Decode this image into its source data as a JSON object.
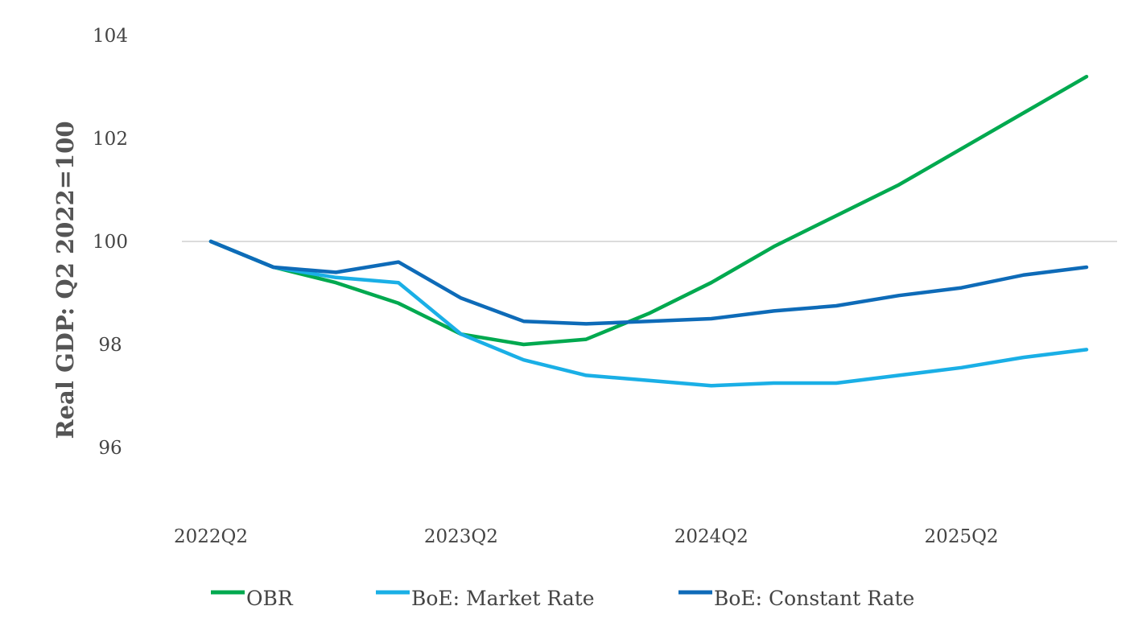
{
  "chart_data": {
    "type": "line",
    "title": "",
    "xlabel": "",
    "ylabel": "Real GDP: Q2 2022=100",
    "ylim": [
      95,
      104
    ],
    "yticks": [
      96,
      98,
      100,
      102,
      104
    ],
    "reference_line": 100,
    "categories": [
      "2022Q2",
      "2022Q3",
      "2022Q4",
      "2023Q1",
      "2023Q2",
      "2023Q3",
      "2023Q4",
      "2024Q1",
      "2024Q2",
      "2024Q3",
      "2024Q4",
      "2025Q1",
      "2025Q2",
      "2025Q3",
      "2025Q4"
    ],
    "x_tick_labels": [
      "2022Q2",
      "2023Q2",
      "2024Q2",
      "2025Q2"
    ],
    "series": [
      {
        "name": "OBR",
        "color": "#00A94F",
        "values": [
          100.0,
          99.5,
          99.2,
          98.8,
          98.2,
          98.0,
          98.1,
          98.6,
          99.2,
          99.9,
          100.5,
          101.1,
          101.8,
          102.5,
          103.2
        ]
      },
      {
        "name": "BoE: Market Rate",
        "color": "#1AAFE6",
        "values": [
          100.0,
          99.5,
          99.3,
          99.2,
          98.2,
          97.7,
          97.4,
          97.3,
          97.2,
          97.25,
          97.25,
          97.4,
          97.55,
          97.75,
          97.9
        ]
      },
      {
        "name": "BoE: Constant Rate",
        "color": "#0E6BB8",
        "values": [
          100.0,
          99.5,
          99.4,
          99.6,
          98.9,
          98.45,
          98.4,
          98.45,
          98.5,
          98.65,
          98.75,
          98.95,
          99.1,
          99.35,
          99.5
        ]
      }
    ],
    "legend_position": "bottom"
  }
}
